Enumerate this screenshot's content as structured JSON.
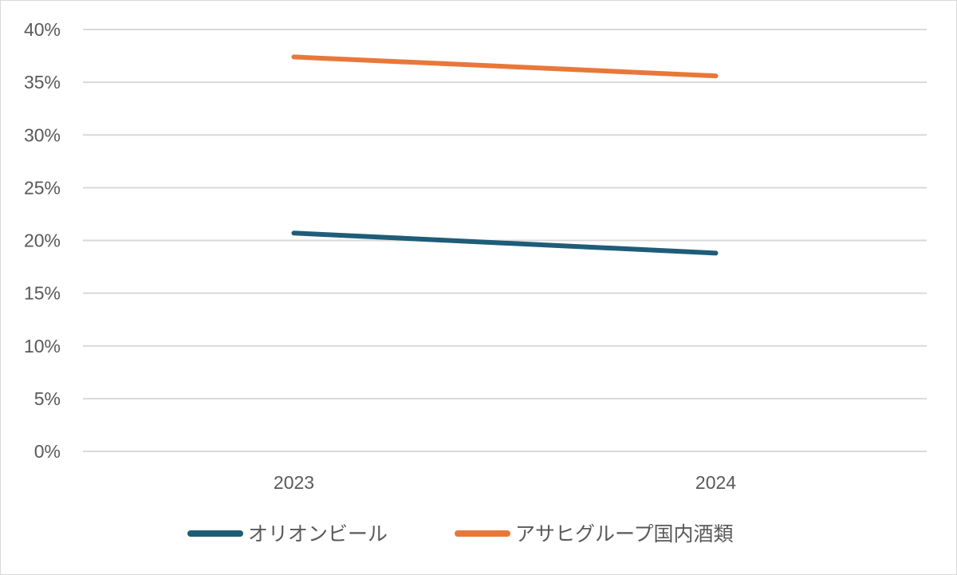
{
  "chart_data": {
    "type": "line",
    "title": "",
    "xlabel": "",
    "ylabel": "",
    "categories": [
      "2023",
      "2024"
    ],
    "y_ticks": [
      "0%",
      "5%",
      "10%",
      "15%",
      "20%",
      "25%",
      "30%",
      "35%",
      "40%"
    ],
    "ylim": [
      0,
      40
    ],
    "y_unit": "%",
    "grid": true,
    "legend_position": "bottom",
    "series": [
      {
        "name": "オリオンビール",
        "values": [
          20.7,
          18.8
        ],
        "color": "#1f5c78"
      },
      {
        "name": "アサヒグループ国内酒類",
        "values": [
          37.4,
          35.6
        ],
        "color": "#e8783a"
      }
    ]
  }
}
